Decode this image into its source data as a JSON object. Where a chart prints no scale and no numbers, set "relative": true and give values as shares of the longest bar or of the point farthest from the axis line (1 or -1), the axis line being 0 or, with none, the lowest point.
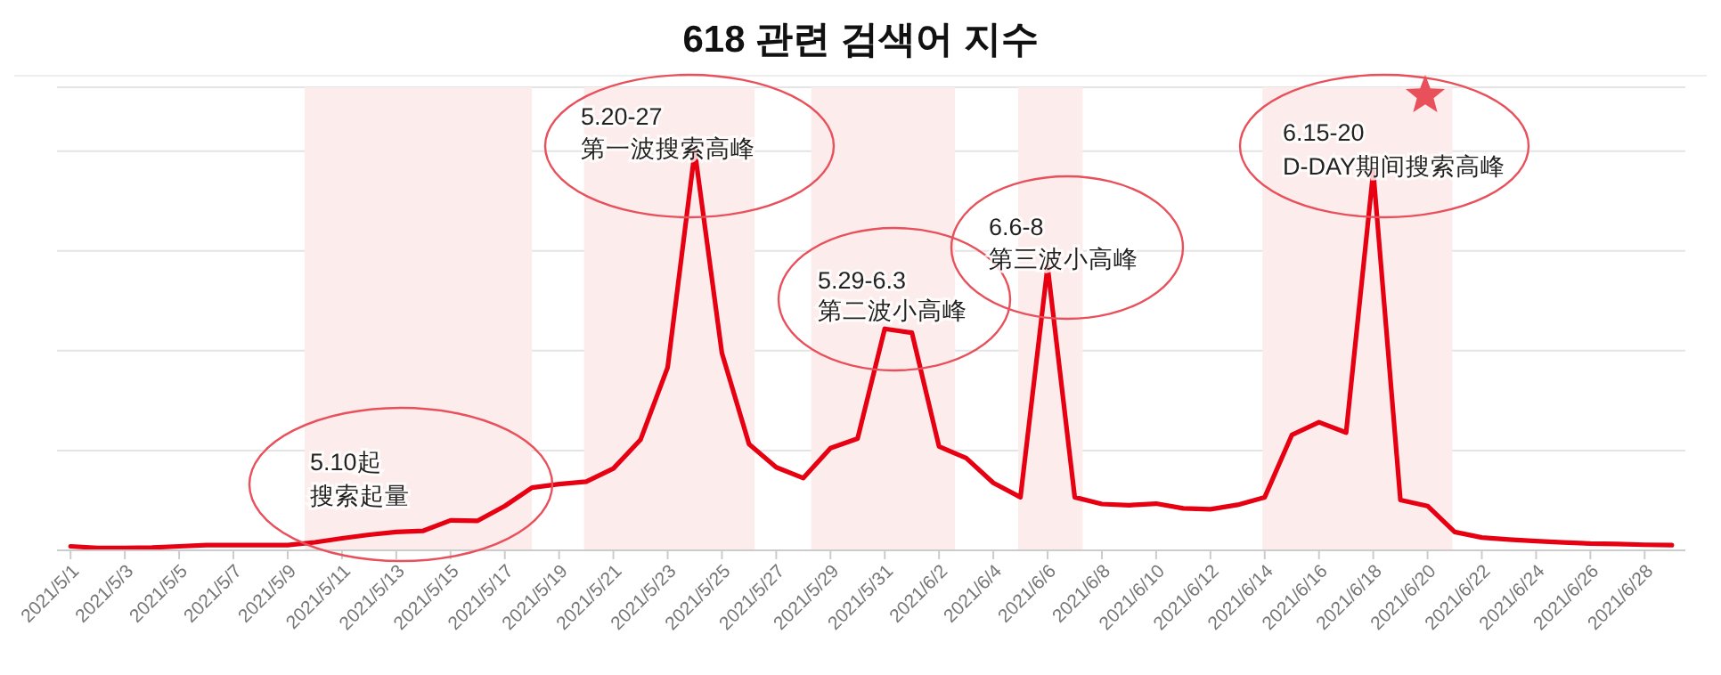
{
  "chart_data": {
    "type": "line",
    "title": "618 관련 검색어 지수",
    "relative": true,
    "grid": "y",
    "legend": false,
    "x": [
      "2021-05-01",
      "2021-05-02",
      "2021-05-03",
      "2021-05-04",
      "2021-05-05",
      "2021-05-06",
      "2021-05-07",
      "2021-05-08",
      "2021-05-09",
      "2021-05-10",
      "2021-05-11",
      "2021-05-12",
      "2021-05-13",
      "2021-05-14",
      "2021-05-15",
      "2021-05-16",
      "2021-05-17",
      "2021-05-18",
      "2021-05-19",
      "2021-05-20",
      "2021-05-21",
      "2021-05-22",
      "2021-05-23",
      "2021-05-24",
      "2021-05-25",
      "2021-05-26",
      "2021-05-27",
      "2021-05-28",
      "2021-05-29",
      "2021-05-30",
      "2021-05-31",
      "2021-06-01",
      "2021-06-02",
      "2021-06-03",
      "2021-06-04",
      "2021-06-05",
      "2021-06-06",
      "2021-06-07",
      "2021-06-08",
      "2021-06-09",
      "2021-06-10",
      "2021-06-11",
      "2021-06-12",
      "2021-06-13",
      "2021-06-14",
      "2021-06-15",
      "2021-06-16",
      "2021-06-17",
      "2021-06-18",
      "2021-06-19",
      "2021-06-20",
      "2021-06-21",
      "2021-06-22",
      "2021-06-23",
      "2021-06-24",
      "2021-06-25",
      "2021-06-26",
      "2021-06-27",
      "2021-06-28",
      "2021-06-29"
    ],
    "xlim": [
      "2021-04-30T12:00",
      "2021-06-29T12:00"
    ],
    "xticks": [
      {
        "value": "2021-05-01",
        "label": "2021/5/1"
      },
      {
        "value": "2021-05-03",
        "label": "2021/5/3"
      },
      {
        "value": "2021-05-05",
        "label": "2021/5/5"
      },
      {
        "value": "2021-05-07",
        "label": "2021/5/7"
      },
      {
        "value": "2021-05-09",
        "label": "2021/5/9"
      },
      {
        "value": "2021-05-11",
        "label": "2021/5/11"
      },
      {
        "value": "2021-05-13",
        "label": "2021/5/13"
      },
      {
        "value": "2021-05-15",
        "label": "2021/5/15"
      },
      {
        "value": "2021-05-17",
        "label": "2021/5/17"
      },
      {
        "value": "2021-05-19",
        "label": "2021/5/19"
      },
      {
        "value": "2021-05-21",
        "label": "2021/5/21"
      },
      {
        "value": "2021-05-23",
        "label": "2021/5/23"
      },
      {
        "value": "2021-05-25",
        "label": "2021/5/25"
      },
      {
        "value": "2021-05-27",
        "label": "2021/5/27"
      },
      {
        "value": "2021-05-29",
        "label": "2021/5/29"
      },
      {
        "value": "2021-05-31",
        "label": "2021/5/31"
      },
      {
        "value": "2021-06-02",
        "label": "2021/6/2"
      },
      {
        "value": "2021-06-04",
        "label": "2021/6/4"
      },
      {
        "value": "2021-06-06",
        "label": "2021/6/6"
      },
      {
        "value": "2021-06-08",
        "label": "2021/6/8"
      },
      {
        "value": "2021-06-10",
        "label": "2021/6/10"
      },
      {
        "value": "2021-06-12",
        "label": "2021/6/12"
      },
      {
        "value": "2021-06-14",
        "label": "2021/6/14"
      },
      {
        "value": "2021-06-16",
        "label": "2021/6/16"
      },
      {
        "value": "2021-06-18",
        "label": "2021/6/18"
      },
      {
        "value": "2021-06-20",
        "label": "2021/6/20"
      },
      {
        "value": "2021-06-22",
        "label": "2021/6/22"
      },
      {
        "value": "2021-06-24",
        "label": "2021/6/24"
      },
      {
        "value": "2021-06-26",
        "label": "2021/6/26"
      },
      {
        "value": "2021-06-28",
        "label": "2021/6/28"
      }
    ],
    "series": [
      {
        "color": "#e60012",
        "values": [
          0.01,
          0.006,
          0.006,
          0.007,
          0.01,
          0.013,
          0.013,
          0.013,
          0.013,
          0.02,
          0.03,
          0.039,
          0.046,
          0.049,
          0.075,
          0.074,
          0.111,
          0.157,
          0.166,
          0.172,
          0.205,
          0.277,
          0.458,
          1,
          0.494,
          0.266,
          0.208,
          0.181,
          0.256,
          0.28,
          0.555,
          0.545,
          0.26,
          0.231,
          0.169,
          0.133,
          0.711,
          0.133,
          0.116,
          0.113,
          0.117,
          0.105,
          0.103,
          0.114,
          0.133,
          0.289,
          0.321,
          0.295,
          0.949,
          0.126,
          0.111,
          0.046,
          0.032,
          0.027,
          0.023,
          0.02,
          0.017,
          0.016,
          0.014,
          0.013
        ]
      }
    ],
    "bands": [
      {
        "axis": "x",
        "from": "2021-05-09T15:00",
        "to": "2021-05-18T00:00",
        "color": "#fcecec"
      },
      {
        "axis": "x",
        "from": "2021-05-19T22:00",
        "to": "2021-05-26T05:00",
        "color": "#fcecec"
      },
      {
        "axis": "x",
        "from": "2021-05-28T07:00",
        "to": "2021-06-02T14:00",
        "color": "#fcecec"
      },
      {
        "axis": "x",
        "from": "2021-06-04T22:00",
        "to": "2021-06-07T07:00",
        "color": "#fcecec"
      },
      {
        "axis": "x",
        "from": "2021-06-13T22:00",
        "to": "2021-06-20T22:00",
        "color": "#fcecec"
      }
    ],
    "annotations": [
      "5.10起",
      "搜索起量",
      "5.20-27",
      "第一波搜索高峰",
      "5.29-6.3",
      "第二波小高峰",
      "6.6-8",
      "第三波小高峰",
      "6.15-20",
      "D-DAY期间搜索高峰"
    ]
  }
}
